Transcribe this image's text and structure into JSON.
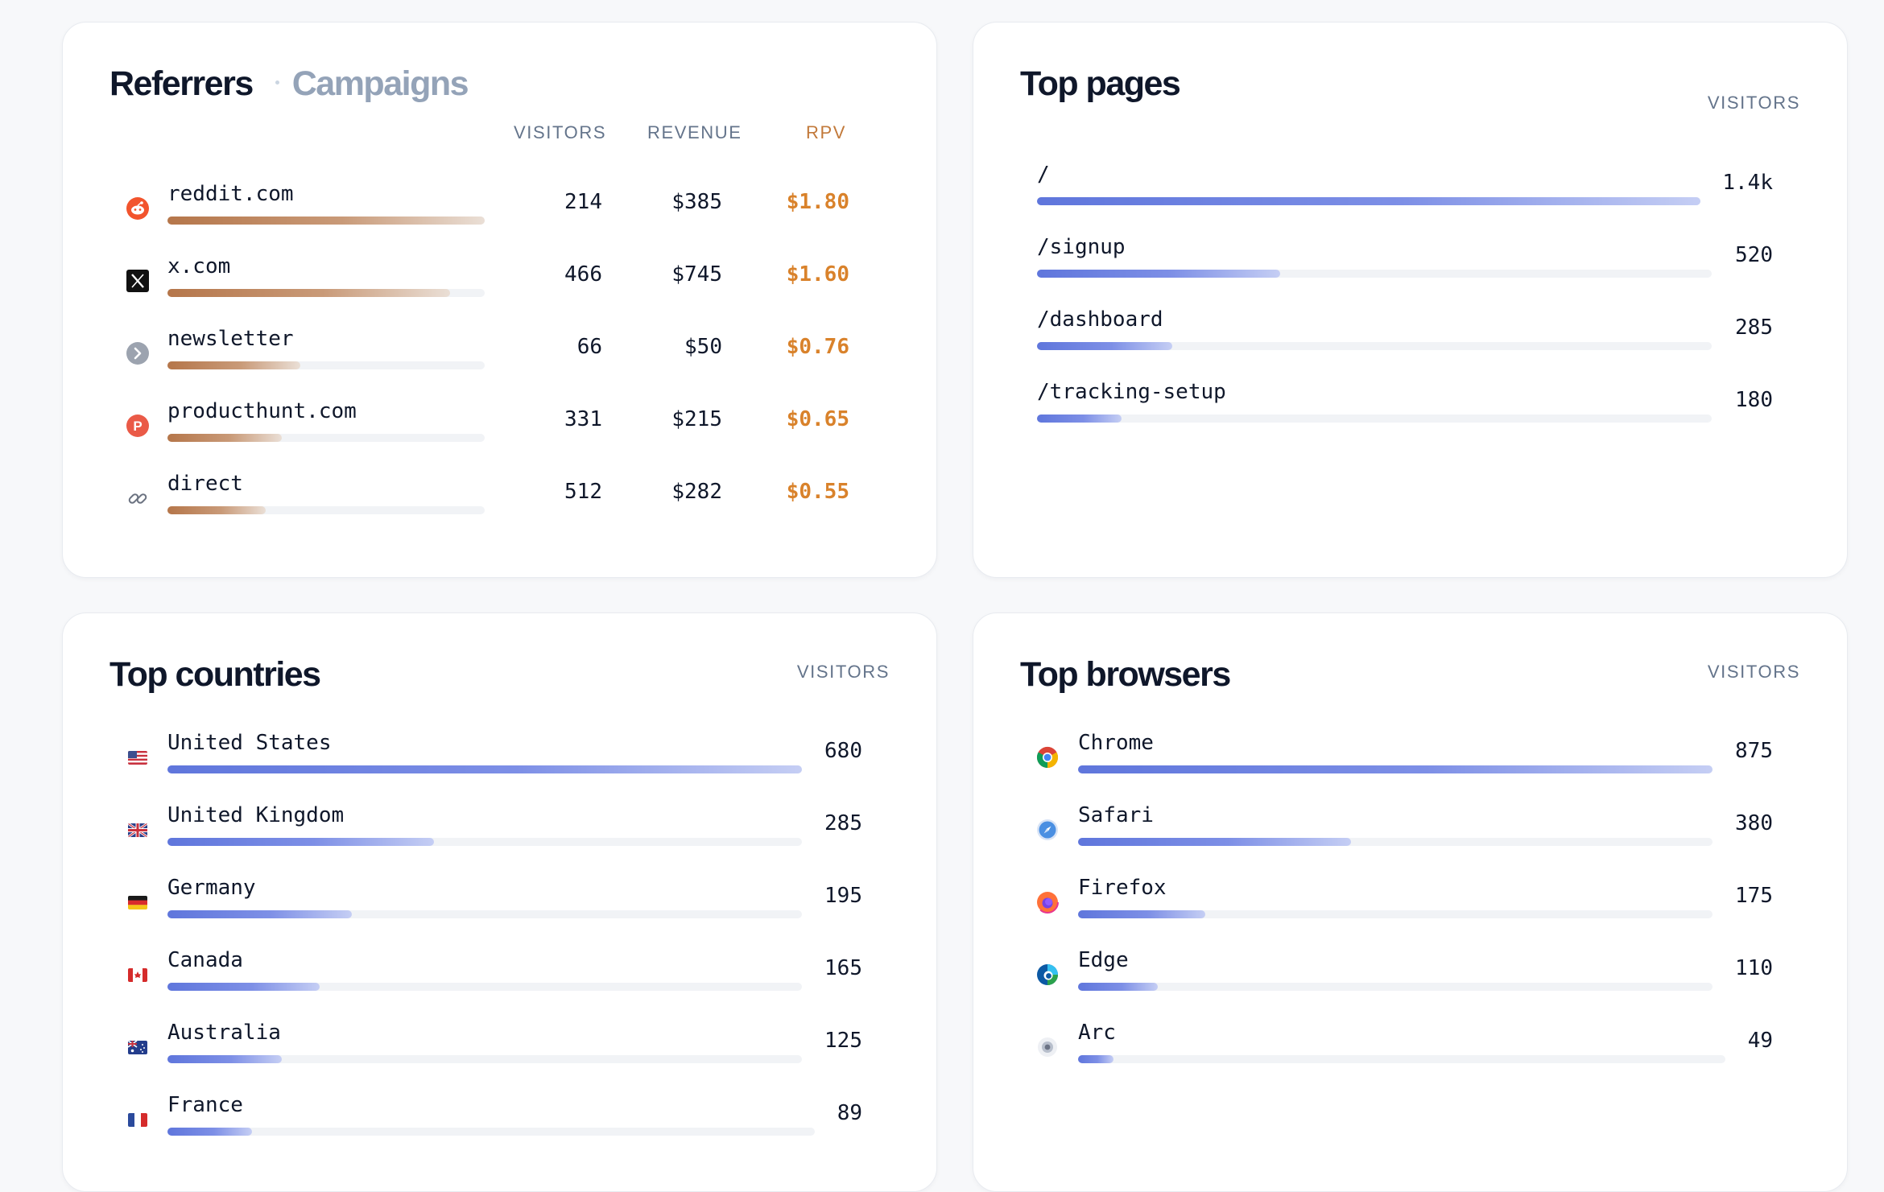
{
  "referrers": {
    "tab_active": "Referrers",
    "tab_inactive": "Campaigns",
    "columns": {
      "visitors": "VISITORS",
      "revenue": "REVENUE",
      "rpv": "RPV"
    },
    "accent_color": "#d9822b",
    "rows": [
      {
        "name": "reddit.com",
        "icon": "reddit-icon",
        "visitors": "214",
        "revenue": "$385",
        "rpv": "$1.80",
        "share": 1.0
      },
      {
        "name": "x.com",
        "icon": "x-icon",
        "visitors": "466",
        "revenue": "$745",
        "rpv": "$1.60",
        "share": 0.89
      },
      {
        "name": "newsletter",
        "icon": "newsletter-icon",
        "visitors": "66",
        "revenue": "$50",
        "rpv": "$0.76",
        "share": 0.42
      },
      {
        "name": "producthunt.com",
        "icon": "producthunt-icon",
        "visitors": "331",
        "revenue": "$215",
        "rpv": "$0.65",
        "share": 0.36
      },
      {
        "name": "direct",
        "icon": "link-icon",
        "visitors": "512",
        "revenue": "$282",
        "rpv": "$0.55",
        "share": 0.31
      }
    ]
  },
  "top_pages": {
    "title": "Top pages",
    "column": "VISITORS",
    "rows": [
      {
        "path": "/",
        "visitors": "1.4k",
        "share": 1.0
      },
      {
        "path": "/signup",
        "visitors": "520",
        "share": 0.36
      },
      {
        "path": "/dashboard",
        "visitors": "285",
        "share": 0.2
      },
      {
        "path": "/tracking-setup",
        "visitors": "180",
        "share": 0.125
      }
    ]
  },
  "top_countries": {
    "title": "Top countries",
    "column": "VISITORS",
    "rows": [
      {
        "name": "United States",
        "icon": "us-flag-icon",
        "visitors": "680",
        "share": 1.0
      },
      {
        "name": "United Kingdom",
        "icon": "uk-flag-icon",
        "visitors": "285",
        "share": 0.42
      },
      {
        "name": "Germany",
        "icon": "de-flag-icon",
        "visitors": "195",
        "share": 0.29
      },
      {
        "name": "Canada",
        "icon": "ca-flag-icon",
        "visitors": "165",
        "share": 0.24
      },
      {
        "name": "Australia",
        "icon": "au-flag-icon",
        "visitors": "125",
        "share": 0.18
      },
      {
        "name": "France",
        "icon": "fr-flag-icon",
        "visitors": "89",
        "share": 0.13
      }
    ]
  },
  "top_browsers": {
    "title": "Top browsers",
    "column": "VISITORS",
    "rows": [
      {
        "name": "Chrome",
        "icon": "chrome-icon",
        "visitors": "875",
        "share": 1.0
      },
      {
        "name": "Safari",
        "icon": "safari-icon",
        "visitors": "380",
        "share": 0.43
      },
      {
        "name": "Firefox",
        "icon": "firefox-icon",
        "visitors": "175",
        "share": 0.2
      },
      {
        "name": "Edge",
        "icon": "edge-icon",
        "visitors": "110",
        "share": 0.125
      },
      {
        "name": "Arc",
        "icon": "arc-icon",
        "visitors": "49",
        "share": 0.055
      }
    ]
  }
}
